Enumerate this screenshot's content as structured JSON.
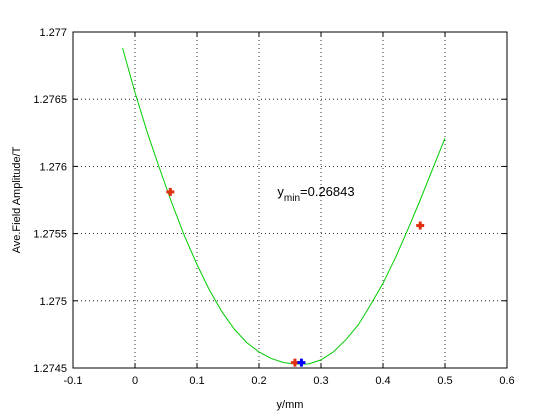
{
  "chart_data": {
    "type": "line",
    "xlabel": "y/mm",
    "ylabel": "Ave.Field Amplitude/T",
    "xlim": [
      -0.1,
      0.6
    ],
    "ylim": [
      1.2745,
      1.277
    ],
    "xticks": [
      -0.1,
      0,
      0.1,
      0.2,
      0.3,
      0.4,
      0.5,
      0.6
    ],
    "xtick_labels": [
      "-0.1",
      "0",
      "0.1",
      "0.2",
      "0.3",
      "0.4",
      "0.5",
      "0.6"
    ],
    "yticks": [
      1.2745,
      1.275,
      1.2755,
      1.276,
      1.2765,
      1.277
    ],
    "ytick_labels": [
      "1.2745",
      "1.275",
      "1.2755",
      "1.276",
      "1.2765",
      "1.277"
    ],
    "grid": true,
    "series": [
      {
        "kind": "curve",
        "color": "#00cc00",
        "x": [
          -0.02,
          0.0,
          0.02,
          0.04,
          0.06,
          0.08,
          0.1,
          0.12,
          0.14,
          0.16,
          0.18,
          0.2,
          0.22,
          0.24,
          0.26,
          0.28,
          0.3,
          0.32,
          0.34,
          0.36,
          0.38,
          0.4,
          0.42,
          0.44,
          0.46,
          0.48,
          0.5
        ],
        "y": [
          1.27688,
          1.27655,
          1.27625,
          1.27598,
          1.27572,
          1.27548,
          1.27527,
          1.27508,
          1.27492,
          1.27479,
          1.27469,
          1.27462,
          1.27457,
          1.27454,
          1.27453,
          1.27453,
          1.27456,
          1.27462,
          1.27471,
          1.27482,
          1.27497,
          1.27513,
          1.27532,
          1.27553,
          1.27575,
          1.27598,
          1.27621
        ]
      },
      {
        "kind": "markers",
        "color": "#e03010",
        "marker": "plus",
        "x": [
          0.057,
          0.258,
          0.46
        ],
        "y": [
          1.27581,
          1.27454,
          1.27556
        ]
      },
      {
        "kind": "markers",
        "color": "#0000ff",
        "marker": "plus",
        "x": [
          0.26843
        ],
        "y": [
          1.27454
        ]
      }
    ],
    "annotations": [
      {
        "base": "y",
        "sub": "min",
        "rest": "=0.26843",
        "x": 0.22,
        "y": 1.27578
      }
    ]
  }
}
